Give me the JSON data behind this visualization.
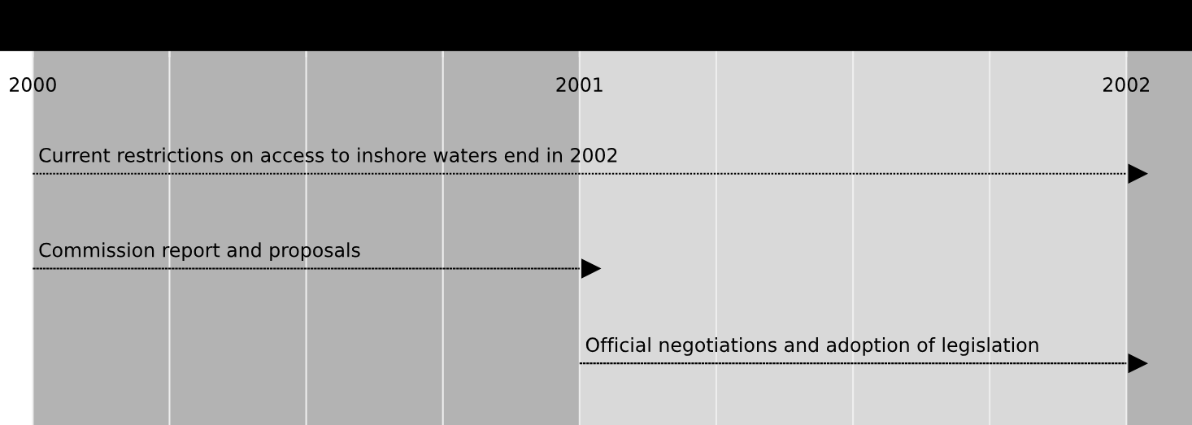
{
  "chart_data": {
    "type": "bar",
    "orientation": "horizontal",
    "categories": [
      "Current restrictions on access to inshore waters end in 2002",
      "Commission report and proposals",
      "Official negotiations and adoption of legislation"
    ],
    "base": [
      2000,
      2000,
      2001
    ],
    "values": [
      2,
      1,
      1
    ],
    "color": "#000000",
    "line_style": "dotted",
    "xlim": [
      1999.94,
      2002.12
    ],
    "xticks": [
      2000,
      {
        "value": 2000.25,
        "label": null
      },
      {
        "value": 2000.5,
        "label": null
      },
      {
        "value": 2000.75,
        "label": null
      },
      2001,
      {
        "value": 2001.25,
        "label": null
      },
      {
        "value": 2001.5,
        "label": null
      },
      {
        "value": 2001.75,
        "label": null
      },
      2002
    ],
    "grid": "x",
    "bands": [
      {
        "axis": "x",
        "from": 2000,
        "to": 2001,
        "color": "#b3b3b3"
      },
      {
        "axis": "x",
        "from": 2001,
        "to": 2002,
        "color": "#d9d9d9"
      },
      {
        "axis": "x",
        "from": 2002,
        "to": 2002.12,
        "color": "#b3b3b3"
      }
    ]
  }
}
